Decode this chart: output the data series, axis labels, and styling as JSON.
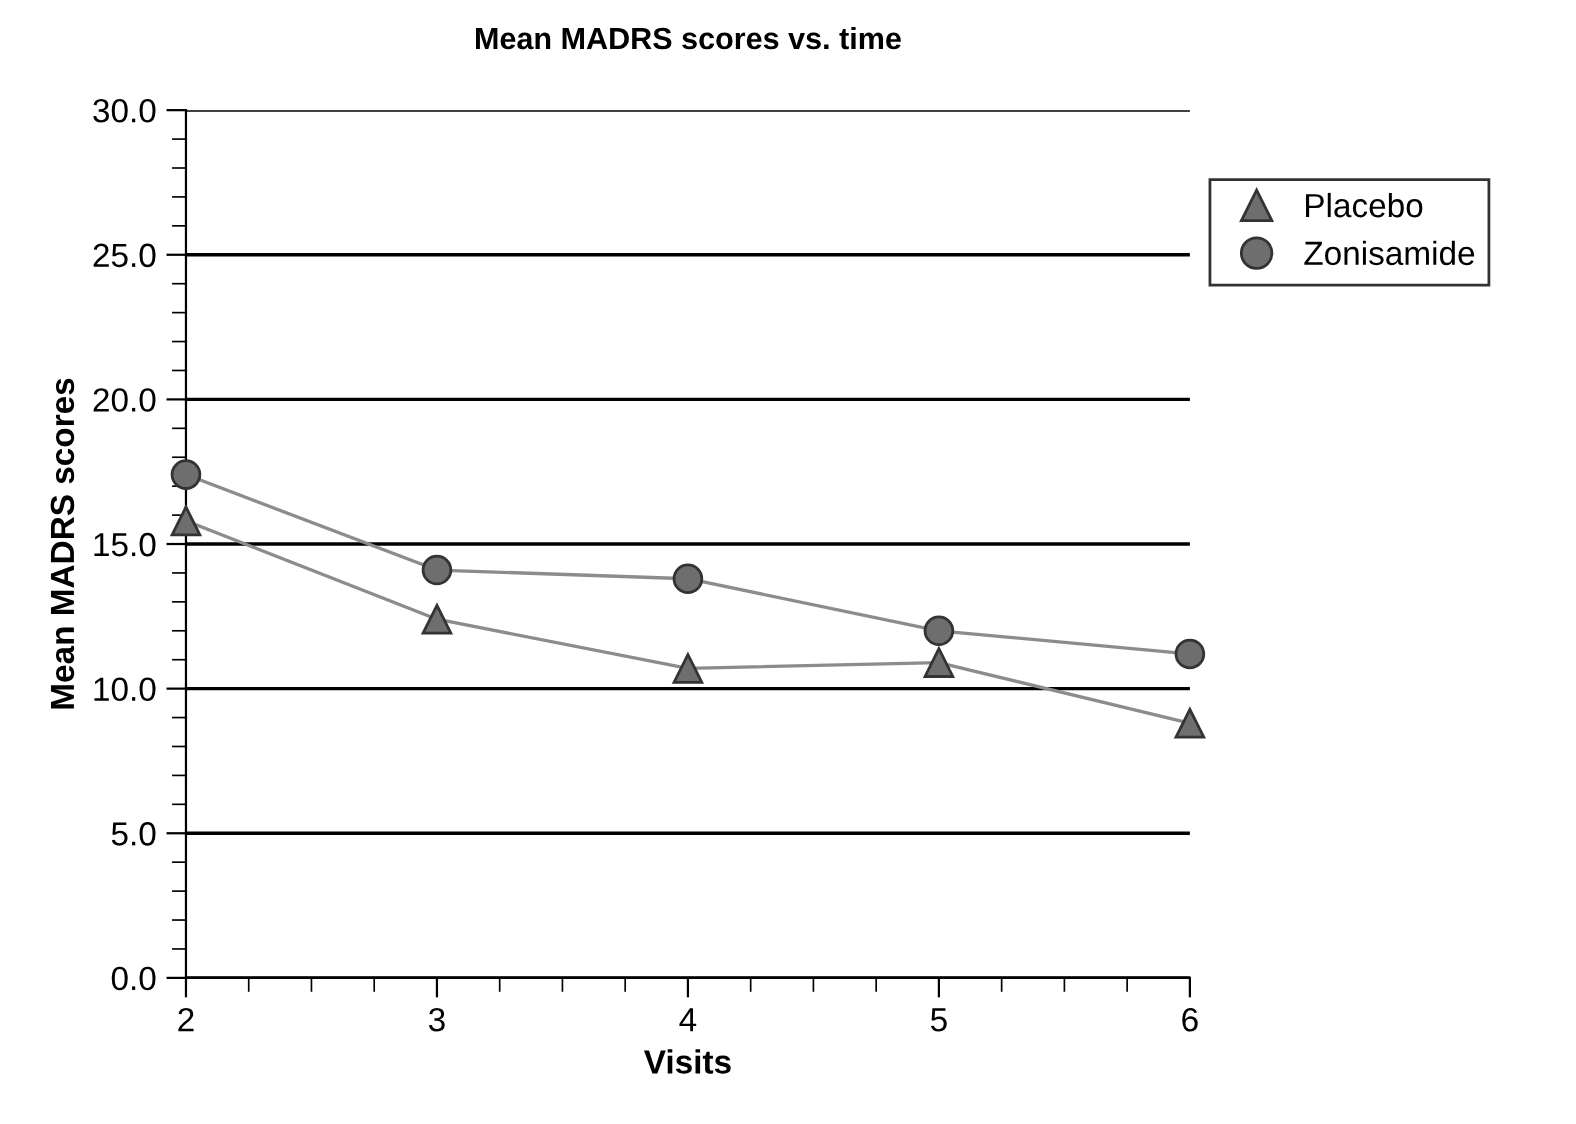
{
  "chart_data": {
    "type": "line",
    "title": "Mean MADRS scores vs. time",
    "xlabel": "Visits",
    "ylabel": "Mean MADRS scores",
    "x": [
      2,
      3,
      4,
      5,
      6
    ],
    "series": [
      {
        "name": "Placebo",
        "color": "#6e6e6e",
        "marker": "triangle",
        "values": [
          15.8,
          12.4,
          10.7,
          10.9,
          8.8
        ]
      },
      {
        "name": "Zonisamide",
        "color": "#6e6e6e",
        "marker": "circle",
        "values": [
          17.4,
          14.1,
          13.8,
          12.0,
          11.2
        ]
      }
    ],
    "xlim": [
      2,
      6
    ],
    "xticks": [
      2,
      3,
      4,
      5,
      6
    ],
    "ylim": [
      0,
      30
    ],
    "yticks": [
      {
        "value": 0,
        "label": "0.0"
      },
      {
        "value": 5,
        "label": "5.0"
      },
      {
        "value": 10,
        "label": "10.0"
      },
      {
        "value": 15,
        "label": "15.0"
      },
      {
        "value": 20,
        "label": "20.0"
      },
      {
        "value": 25,
        "label": "25.0"
      },
      {
        "value": 30,
        "label": "30.0"
      }
    ],
    "grid": "y",
    "legend": "top right"
  }
}
